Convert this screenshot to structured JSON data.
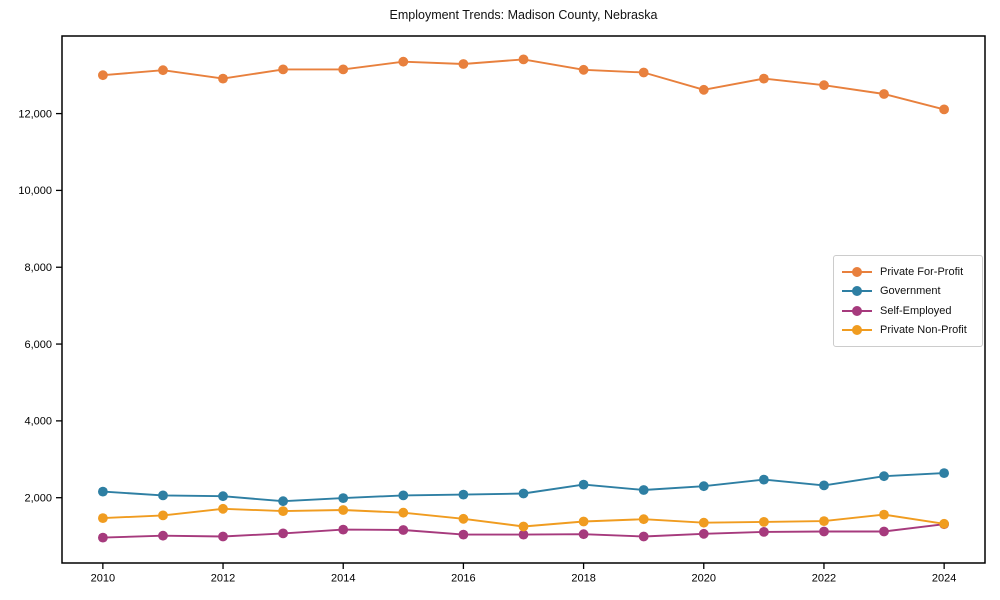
{
  "chart_data": {
    "type": "line",
    "title": "Employment Trends: Madison County, Nebraska",
    "xlabel": "",
    "ylabel": "",
    "x": [
      2010,
      2011,
      2012,
      2013,
      2014,
      2015,
      2016,
      2017,
      2018,
      2019,
      2020,
      2021,
      2022,
      2023,
      2024
    ],
    "series": [
      {
        "name": "Private For-Profit",
        "color": "#E8803D",
        "values": [
          13000,
          13130,
          12910,
          13150,
          13150,
          13350,
          13290,
          13410,
          13140,
          13070,
          12620,
          12910,
          12740,
          12510,
          12110
        ]
      },
      {
        "name": "Government",
        "color": "#2E7FA3",
        "values": [
          2160,
          2060,
          2040,
          1910,
          1990,
          2060,
          2080,
          2110,
          2340,
          2200,
          2300,
          2470,
          2320,
          2560,
          2640
        ]
      },
      {
        "name": "Self-Employed",
        "color": "#A63A7D",
        "values": [
          960,
          1010,
          990,
          1070,
          1170,
          1160,
          1040,
          1040,
          1050,
          990,
          1060,
          1110,
          1120,
          1120,
          1310
        ]
      },
      {
        "name": "Private Non-Profit",
        "color": "#F09C20",
        "values": [
          1470,
          1540,
          1710,
          1650,
          1680,
          1610,
          1450,
          1250,
          1380,
          1440,
          1350,
          1370,
          1390,
          1560,
          1320
        ]
      }
    ],
    "xticks": {
      "values": [
        2010,
        2012,
        2014,
        2016,
        2018,
        2020,
        2022,
        2024
      ],
      "labels": [
        "2010",
        "2012",
        "2014",
        "2016",
        "2018",
        "2020",
        "2022",
        "2024"
      ]
    },
    "yticks": {
      "values": [
        2000,
        4000,
        6000,
        8000,
        10000,
        12000
      ],
      "labels": [
        "2,000",
        "4,000",
        "6,000",
        "8,000",
        "10,000",
        "12,000"
      ]
    },
    "xlim": [
      2009.32,
      2024.68
    ],
    "ylim": [
      300,
      14020
    ],
    "grid": false,
    "legend_position": "center-right",
    "marker": "circle",
    "axis_color": "#000000",
    "background_color": "#ffffff"
  }
}
